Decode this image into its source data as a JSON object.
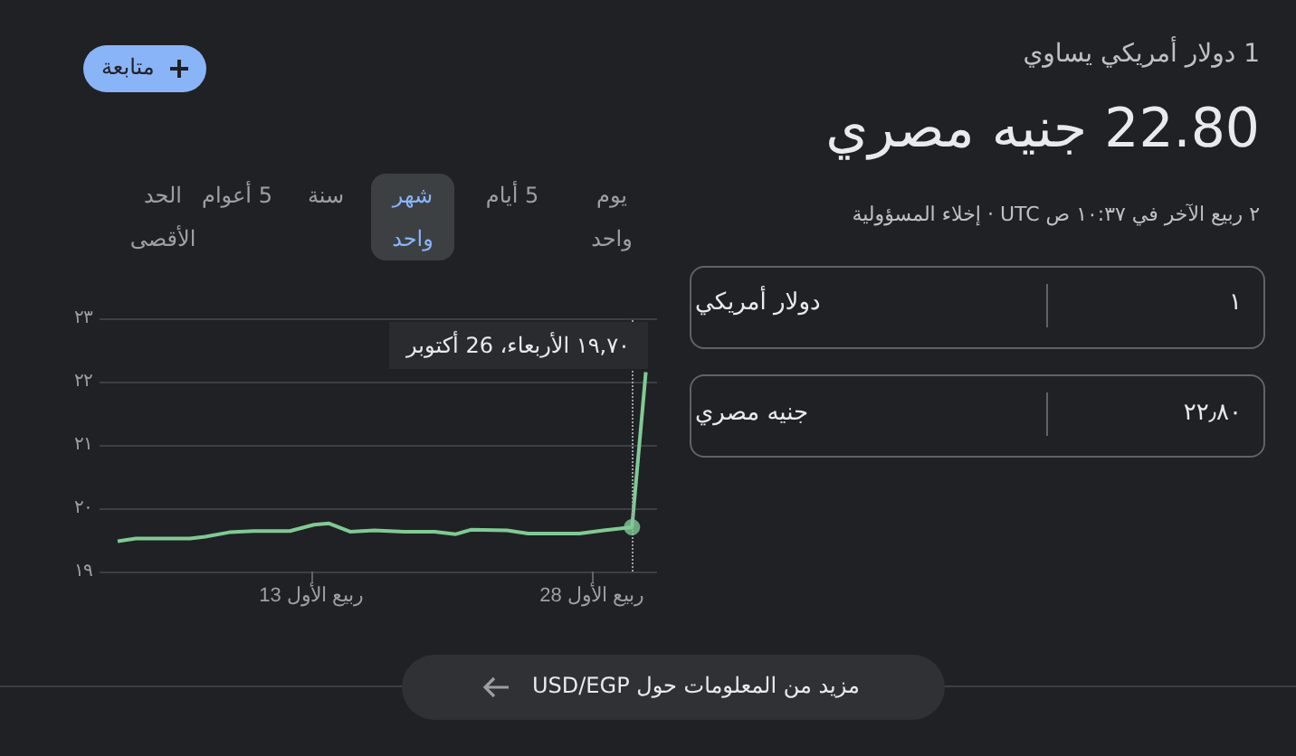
{
  "chart_data": {
    "type": "line",
    "subtitle": "1 دولار أمريكي يساوي",
    "title": "22.80 جنيه مصري",
    "x": [
      2.67,
      3.64,
      6.54,
      7.35,
      8.64,
      9.93,
      11.87,
      13.16,
      13.97,
      15.09,
      16.39,
      17.99,
      19.61,
      20.74,
      21.55,
      23.48,
      24.61,
      27.35,
      28.64,
      30.16,
      30.9
    ],
    "series": [
      {
        "color": "#81c995",
        "values": [
          19.48,
          19.52,
          19.52,
          19.55,
          19.62,
          19.64,
          19.64,
          19.74,
          19.76,
          19.63,
          19.65,
          19.63,
          19.63,
          19.59,
          19.66,
          19.65,
          19.6,
          19.6,
          19.65,
          19.7,
          22.15
        ]
      },
      {
        "type": "scatter",
        "marker": "circle",
        "color": "#81c995",
        "x": [
          30.16
        ],
        "values": [
          19.7
        ]
      }
    ],
    "xlim": [
      1.7,
      31.5
    ],
    "xticks": [
      {
        "value": 13,
        "label": "13 ربيع الأول"
      },
      {
        "value": 28,
        "label": "28 ربيع الأول"
      }
    ],
    "ylim": [
      19,
      23
    ],
    "yticks": [
      {
        "value": 19,
        "label": "١٩"
      },
      {
        "value": 20,
        "label": "٢٠"
      },
      {
        "value": 21,
        "label": "٢١"
      },
      {
        "value": 22,
        "label": "٢٢"
      },
      {
        "value": 23,
        "label": "٢٣"
      }
    ],
    "grid": "y",
    "marker": "none",
    "ref_lines": [
      {
        "axis": "x",
        "value": 30.16,
        "color": "#9aa0a6",
        "line_style": "dotted"
      }
    ],
    "annotations": [
      "١٩,٧٠  الأربعاء، 26 أكتوبر",
      "٢ ربيع الآخر في ١٠:٣٧ ص UTC · إخلاء المسؤولية",
      "متابعة",
      "يوم واحد",
      "5 أيام",
      "شهر واحد",
      "سنة",
      "5 أعوام",
      "الحد الأقصى",
      "١",
      "دولار أمريكي",
      "٢٢٫٨٠",
      "جنيه مصري",
      "مزيد من المعلومات حول USD/EGP"
    ]
  }
}
